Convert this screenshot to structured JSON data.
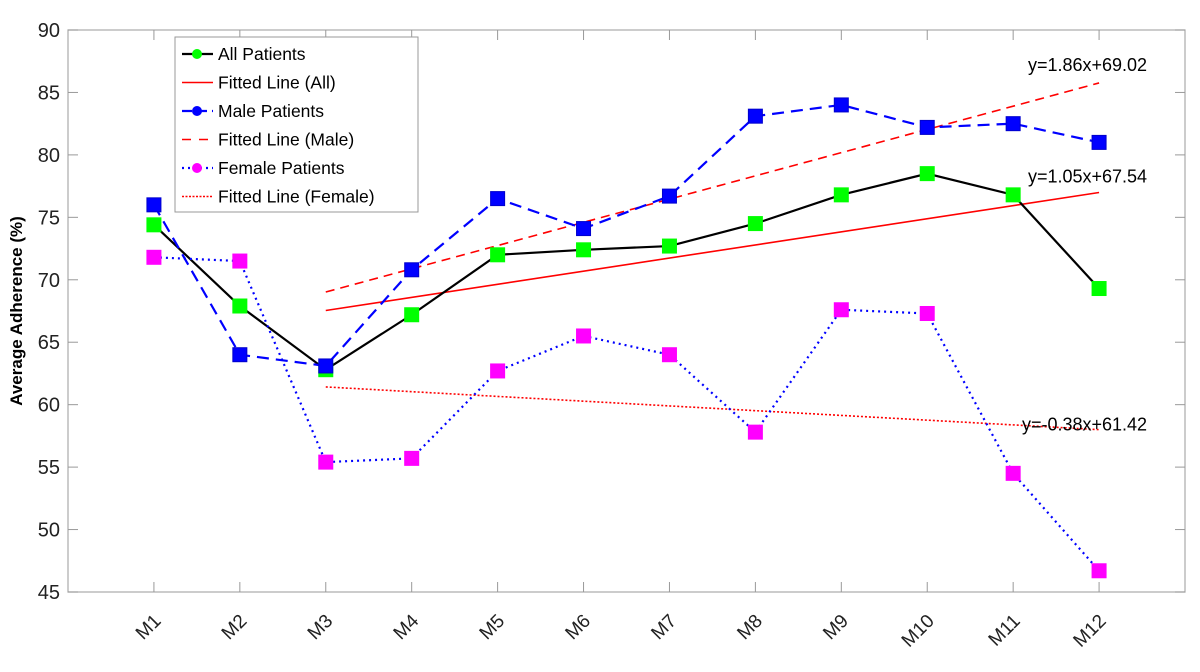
{
  "chart_data": {
    "type": "line",
    "title": "",
    "xlabel": "",
    "ylabel": "Average Adherence (%)",
    "ylim": [
      45,
      90
    ],
    "yticks": [
      45,
      50,
      55,
      60,
      65,
      70,
      75,
      80,
      85,
      90
    ],
    "categories": [
      "M1",
      "M2",
      "M3",
      "M4",
      "M5",
      "M6",
      "M7",
      "M8",
      "M9",
      "M10",
      "M11",
      "M12"
    ],
    "grid": false,
    "legend_position": "top-left",
    "series": [
      {
        "name": "All Patients",
        "color": "#000000",
        "marker_color": "#00ff00",
        "style": "solid",
        "values": [
          74.4,
          67.9,
          62.8,
          67.2,
          72.0,
          72.4,
          72.7,
          74.5,
          76.8,
          78.5,
          76.8,
          69.3
        ]
      },
      {
        "name": "Male Patients",
        "color": "#0000ff",
        "marker_color": "#0000ff",
        "style": "dashed",
        "values": [
          76.0,
          64.0,
          63.1,
          70.8,
          76.5,
          74.1,
          76.7,
          83.1,
          84.0,
          82.2,
          82.5,
          81.0
        ]
      },
      {
        "name": "Female Patients",
        "color": "#0000ff",
        "marker_color": "#ff00ff",
        "style": "dotted",
        "values": [
          71.8,
          71.5,
          55.4,
          55.7,
          62.7,
          65.5,
          64.0,
          57.8,
          67.6,
          67.3,
          54.5,
          46.7
        ]
      }
    ],
    "fits": [
      {
        "name": "Fitted Line (All)",
        "color": "#ff0000",
        "style": "solid",
        "slope": 1.05,
        "intercept": 67.54,
        "from": "M3",
        "to": "M12",
        "equation": "y=1.05x+67.54"
      },
      {
        "name": "Fitted Line (Male)",
        "color": "#ff0000",
        "style": "dashed",
        "slope": 1.86,
        "intercept": 69.02,
        "from": "M3",
        "to": "M12",
        "equation": "y=1.86x+69.02"
      },
      {
        "name": "Fitted Line (Female)",
        "color": "#ff0000",
        "style": "dotted",
        "slope": -0.38,
        "intercept": 61.42,
        "from": "M3",
        "to": "M12",
        "equation": "y=-0.38x+61.42"
      }
    ],
    "legend": [
      "All Patients",
      "Fitted Line (All)",
      "Male Patients",
      "Fitted Line (Male)",
      "Female Patients",
      "Fitted Line (Female)"
    ]
  }
}
